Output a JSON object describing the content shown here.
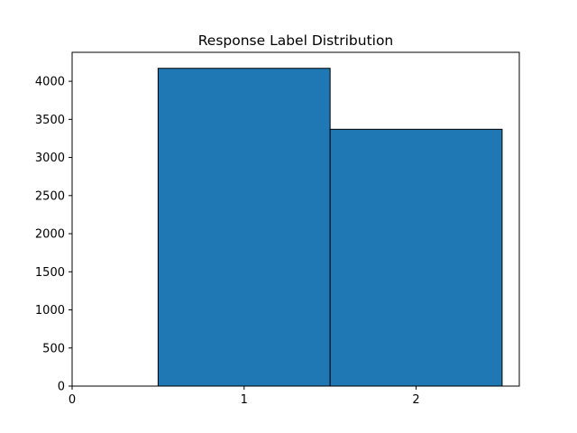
{
  "chart_data": {
    "type": "bar",
    "title": "Response Label Distribution",
    "xlabel": "",
    "ylabel": "",
    "categories": [
      "1",
      "2"
    ],
    "x_centers": [
      1,
      2
    ],
    "bar_width": 1,
    "values": [
      4170,
      3370
    ],
    "xlim": [
      0,
      2.6
    ],
    "ylim": [
      0,
      4380
    ],
    "x_ticks": [
      0,
      1,
      2
    ],
    "x_tick_labels": [
      "0",
      "1",
      "2"
    ],
    "y_ticks": [
      0,
      500,
      1000,
      1500,
      2000,
      2500,
      3000,
      3500,
      4000
    ],
    "y_tick_labels": [
      "0",
      "500",
      "1000",
      "1500",
      "2000",
      "2500",
      "3000",
      "3500",
      "4000"
    ],
    "grid": false,
    "legend": "none",
    "colors": {
      "bar_fill": "#1f77b4",
      "bar_edge": "#000000",
      "axis": "#000000",
      "background": "#ffffff"
    }
  }
}
